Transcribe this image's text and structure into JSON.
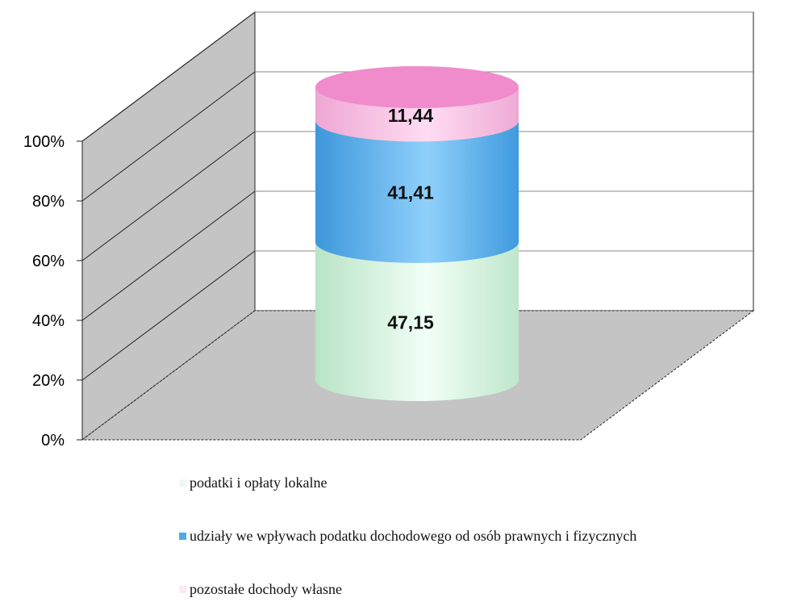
{
  "chart_data": {
    "type": "bar",
    "variant": "100% stacked 3D cylinder",
    "y_ticks": [
      "0%",
      "20%",
      "40%",
      "60%",
      "80%",
      "100%"
    ],
    "ylim": [
      0,
      100
    ],
    "grid": true,
    "legend_position": "bottom",
    "series": [
      {
        "name": "podatki i opłaty lokalne",
        "value": 47.15,
        "label": "47,15",
        "color": "#d2f2dc"
      },
      {
        "name": "udziały we wpływach podatku dochodowego od osób prawnych i fizycznych",
        "value": 41.41,
        "label": "41,41",
        "color": "#4ea9ea"
      },
      {
        "name": "pozostałe dochody własne",
        "value": 11.44,
        "label": "11,44",
        "color": "#f4b6dc"
      }
    ]
  }
}
